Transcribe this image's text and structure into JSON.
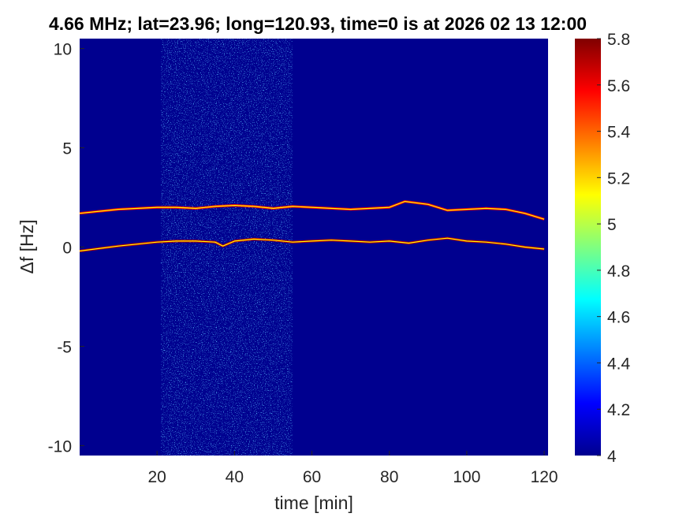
{
  "chart_data": {
    "type": "heatmap",
    "title": "4.66 MHz;  lat=23.96; long=120.93, time=0 is at 2026 02 13 12:00",
    "xlabel": "time [min]",
    "ylabel": "Δf [Hz]",
    "xlim": [
      0,
      121
    ],
    "ylim": [
      -10.5,
      10.5
    ],
    "x_ticks": [
      20,
      40,
      60,
      80,
      100,
      120
    ],
    "x_tick_labels": [
      "20",
      "40",
      "60",
      "80",
      "100",
      "120"
    ],
    "y_ticks": [
      10,
      5,
      0,
      -5,
      -10
    ],
    "y_tick_labels": [
      "10",
      "5",
      "0",
      "-5",
      "-10"
    ],
    "colormap": "jet",
    "colorbar": {
      "range": [
        4,
        5.8
      ],
      "ticks": [
        5.8,
        5.6,
        5.4,
        5.2,
        5,
        4.8,
        4.6,
        4.4,
        4.2,
        4
      ],
      "tick_labels": [
        "5.8",
        "5.6",
        "5.4",
        "5.2",
        "5",
        "4.8",
        "4.6",
        "4.4",
        "4.2",
        "4"
      ]
    },
    "background_value": 4.0,
    "noise_band": {
      "x_range": [
        21,
        55
      ],
      "approx_value": 4.4
    },
    "traces": [
      {
        "x": [
          0,
          10,
          20,
          25,
          30,
          35,
          40,
          45,
          50,
          55,
          60,
          65,
          70,
          75,
          80,
          84,
          90,
          95,
          100,
          105,
          110,
          115,
          120
        ],
        "delta_f": [
          1.7,
          1.9,
          2.0,
          2.0,
          1.95,
          2.05,
          2.1,
          2.05,
          1.95,
          2.05,
          2.0,
          1.95,
          1.9,
          1.95,
          2.0,
          2.3,
          2.15,
          1.85,
          1.9,
          1.95,
          1.9,
          1.7,
          1.4
        ],
        "peak_value": 5.6
      },
      {
        "x": [
          0,
          10,
          20,
          25,
          30,
          35,
          37,
          40,
          45,
          50,
          55,
          60,
          65,
          70,
          75,
          80,
          85,
          90,
          95,
          100,
          105,
          110,
          115,
          120
        ],
        "delta_f": [
          -0.2,
          0.05,
          0.25,
          0.3,
          0.3,
          0.25,
          0.05,
          0.3,
          0.4,
          0.35,
          0.25,
          0.3,
          0.35,
          0.3,
          0.25,
          0.3,
          0.2,
          0.35,
          0.45,
          0.3,
          0.25,
          0.15,
          0.0,
          -0.1
        ],
        "peak_value": 5.7
      }
    ]
  }
}
